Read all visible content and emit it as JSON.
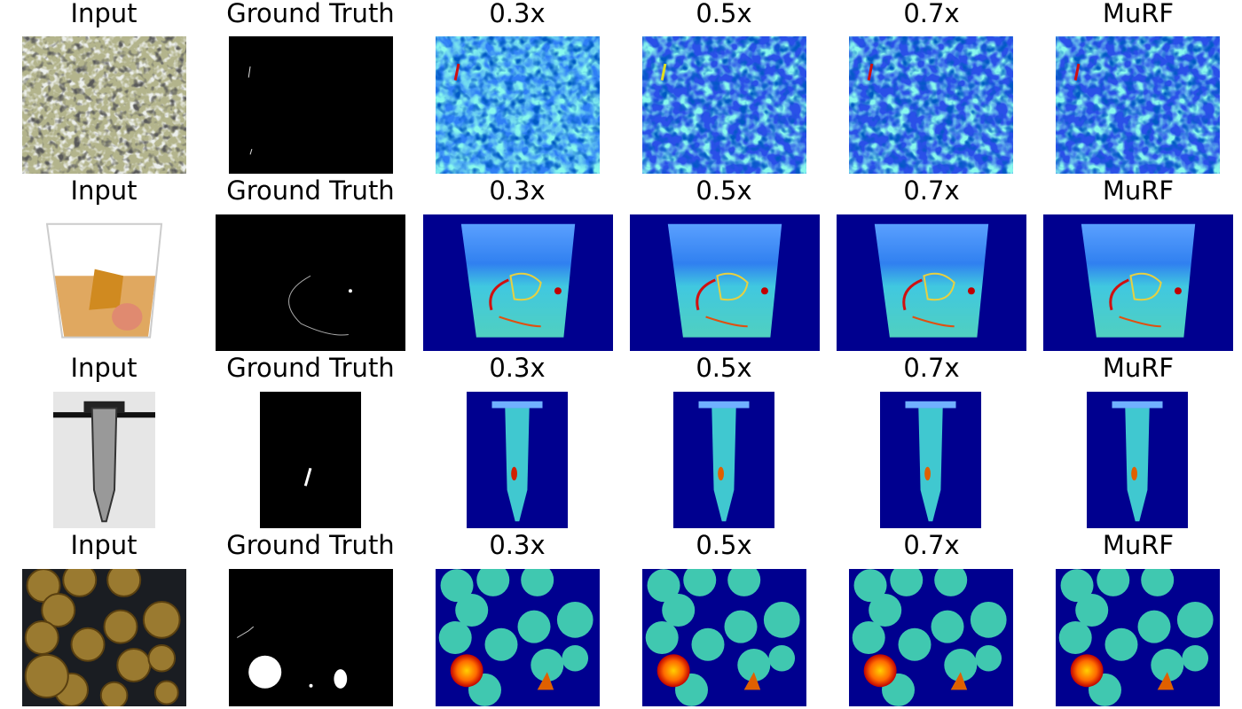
{
  "rows": [
    {
      "labels": [
        "Input",
        "Ground Truth",
        "0.3x",
        "0.5x",
        "0.7x",
        "MuRF"
      ]
    },
    {
      "labels": [
        "Input",
        "Ground Truth",
        "0.3x",
        "0.5x",
        "0.7x",
        "MuRF"
      ]
    },
    {
      "labels": [
        "Input",
        "Ground Truth",
        "0.3x",
        "0.5x",
        "0.7x",
        "MuRF"
      ]
    },
    {
      "labels": [
        "Input",
        "Ground Truth",
        "0.3x",
        "0.5x",
        "0.7x",
        "MuRF"
      ]
    }
  ]
}
